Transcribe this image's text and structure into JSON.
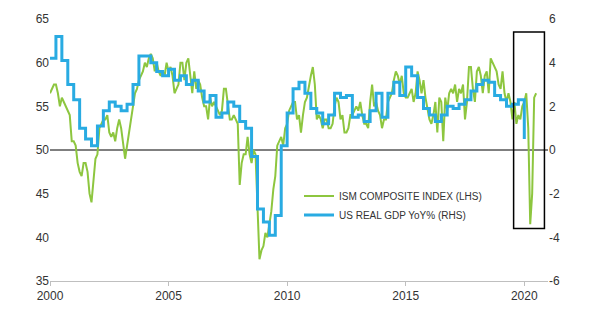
{
  "chart_data": {
    "type": "line",
    "xlim": [
      2000,
      2021
    ],
    "xticks": [
      2000,
      2005,
      2010,
      2015,
      2020
    ],
    "ylim": [
      35,
      65
    ],
    "yticks": [
      35,
      40,
      45,
      50,
      55,
      60,
      65
    ],
    "y2lim": [
      -6,
      6
    ],
    "y2ticks": [
      -6,
      -4,
      -2,
      0,
      2,
      4,
      6
    ],
    "grid": false,
    "legend": "lower center",
    "reference_line": 50,
    "highlight": {
      "x": [
        2019.55,
        2020.85
      ],
      "y": [
        41,
        63.5
      ]
    },
    "series": [
      {
        "name": "ISM COMPOSITE INDEX (LHS)",
        "color": "#8dc63f",
        "axis": "y",
        "x": [
          2000,
          2000.083,
          2000.167,
          2000.25,
          2000.333,
          2000.417,
          2000.5,
          2000.583,
          2000.667,
          2000.75,
          2000.833,
          2000.917,
          2001,
          2001.083,
          2001.167,
          2001.25,
          2001.333,
          2001.417,
          2001.5,
          2001.583,
          2001.667,
          2001.75,
          2001.833,
          2001.917,
          2002,
          2002.083,
          2002.167,
          2002.25,
          2002.333,
          2002.417,
          2002.5,
          2002.583,
          2002.667,
          2002.75,
          2002.833,
          2002.917,
          2003,
          2003.083,
          2003.167,
          2003.25,
          2003.333,
          2003.417,
          2003.5,
          2003.583,
          2003.667,
          2003.75,
          2003.833,
          2003.917,
          2004,
          2004.083,
          2004.167,
          2004.25,
          2004.333,
          2004.417,
          2004.5,
          2004.583,
          2004.667,
          2004.75,
          2004.833,
          2004.917,
          2005,
          2005.083,
          2005.167,
          2005.25,
          2005.333,
          2005.417,
          2005.5,
          2005.583,
          2005.667,
          2005.75,
          2005.833,
          2005.917,
          2006,
          2006.083,
          2006.167,
          2006.25,
          2006.333,
          2006.417,
          2006.5,
          2006.583,
          2006.667,
          2006.75,
          2006.833,
          2006.917,
          2007,
          2007.083,
          2007.167,
          2007.25,
          2007.333,
          2007.417,
          2007.5,
          2007.583,
          2007.667,
          2007.75,
          2007.833,
          2007.917,
          2008,
          2008.083,
          2008.167,
          2008.25,
          2008.333,
          2008.417,
          2008.5,
          2008.583,
          2008.667,
          2008.75,
          2008.833,
          2008.917,
          2009,
          2009.083,
          2009.167,
          2009.25,
          2009.333,
          2009.417,
          2009.5,
          2009.583,
          2009.667,
          2009.75,
          2009.833,
          2009.917,
          2010,
          2010.083,
          2010.167,
          2010.25,
          2010.333,
          2010.417,
          2010.5,
          2010.583,
          2010.667,
          2010.75,
          2010.833,
          2010.917,
          2011,
          2011.083,
          2011.167,
          2011.25,
          2011.333,
          2011.417,
          2011.5,
          2011.583,
          2011.667,
          2011.75,
          2011.833,
          2011.917,
          2012,
          2012.083,
          2012.167,
          2012.25,
          2012.333,
          2012.417,
          2012.5,
          2012.583,
          2012.667,
          2012.75,
          2012.833,
          2012.917,
          2013,
          2013.083,
          2013.167,
          2013.25,
          2013.333,
          2013.417,
          2013.5,
          2013.583,
          2013.667,
          2013.75,
          2013.833,
          2013.917,
          2014,
          2014.083,
          2014.167,
          2014.25,
          2014.333,
          2014.417,
          2014.5,
          2014.583,
          2014.667,
          2014.75,
          2014.833,
          2014.917,
          2015,
          2015.083,
          2015.167,
          2015.25,
          2015.333,
          2015.417,
          2015.5,
          2015.583,
          2015.667,
          2015.75,
          2015.833,
          2015.917,
          2016,
          2016.083,
          2016.167,
          2016.25,
          2016.333,
          2016.417,
          2016.5,
          2016.583,
          2016.667,
          2016.75,
          2016.833,
          2016.917,
          2017,
          2017.083,
          2017.167,
          2017.25,
          2017.333,
          2017.417,
          2017.5,
          2017.583,
          2017.667,
          2017.75,
          2017.833,
          2017.917,
          2018,
          2018.083,
          2018.167,
          2018.25,
          2018.333,
          2018.417,
          2018.5,
          2018.583,
          2018.667,
          2018.75,
          2018.833,
          2018.917,
          2019,
          2019.083,
          2019.167,
          2019.25,
          2019.333,
          2019.417,
          2019.5,
          2019.583,
          2019.667,
          2019.75,
          2019.833,
          2019.917,
          2020,
          2020.083,
          2020.167,
          2020.25,
          2020.333,
          2020.417,
          2020.5
        ],
        "values": [
          56.5,
          57,
          57.5,
          57.5,
          56.5,
          55,
          56,
          55.5,
          55,
          54.5,
          54,
          51,
          51,
          50.5,
          48.5,
          47.5,
          47,
          48.5,
          48.5,
          47.5,
          45,
          44,
          46.5,
          49,
          49.5,
          52.5,
          53,
          53.5,
          53.5,
          54,
          52,
          51.5,
          52,
          51,
          52.5,
          53.5,
          52.5,
          51,
          49,
          50.5,
          52,
          54,
          55.5,
          56.5,
          57,
          58,
          58.5,
          59,
          60,
          59.5,
          60.5,
          61,
          60.5,
          59,
          60,
          59,
          58.5,
          59,
          58.5,
          60,
          59,
          59.5,
          58.5,
          56.5,
          57,
          57.5,
          60,
          60,
          58,
          60,
          60.5,
          58.5,
          56.5,
          59,
          57,
          58,
          57.5,
          56,
          55,
          55,
          53.5,
          56,
          55,
          55.5,
          55,
          54.5,
          54,
          54.5,
          57,
          57,
          55,
          53.5,
          53.5,
          54,
          53.5,
          53,
          46,
          48.5,
          49.5,
          49.5,
          51.5,
          49.5,
          48.5,
          50,
          49.5,
          44,
          37.5,
          38.5,
          39,
          40.5,
          40,
          41.5,
          43,
          45.5,
          47,
          50.5,
          51,
          51.5,
          50.5,
          52.5,
          53,
          54.5,
          55,
          55.5,
          55.5,
          53.5,
          54,
          52,
          54,
          55.5,
          56,
          57.5,
          58.5,
          59.5,
          57.5,
          53.5,
          54,
          53.5,
          52.5,
          53.5,
          53.5,
          52.5,
          52.5,
          53,
          55,
          56,
          55.5,
          53.5,
          54,
          52,
          52,
          52.5,
          54,
          54,
          54.5,
          55,
          54.5,
          55.5,
          54,
          53,
          53,
          52.5,
          55.5,
          57.5,
          55,
          55.5,
          54.5,
          54,
          52.5,
          53.5,
          53.5,
          55.5,
          56,
          56.5,
          58,
          59,
          58.5,
          57.5,
          58.5,
          56.5,
          56,
          56,
          56.5,
          57,
          55.5,
          56.5,
          59,
          58,
          56.5,
          58,
          56,
          54.5,
          53.5,
          53,
          54,
          55.5,
          52,
          56,
          55.5,
          51,
          56,
          54.5,
          56.5,
          57,
          56.5,
          57.5,
          55.5,
          57,
          56.5,
          57.5,
          53.5,
          55.5,
          59.5,
          59.5,
          57,
          55.5,
          59,
          59.5,
          58.5,
          56.5,
          58.5,
          59,
          56.5,
          60.5,
          60,
          59.5,
          59,
          57.5,
          57,
          59,
          56.5,
          55.5,
          56.5,
          55.5,
          53.5,
          55.5,
          53,
          54,
          53.5,
          55,
          55.5,
          56.5,
          52.5,
          41.5,
          45,
          56,
          56.5
        ]
      },
      {
        "name": "US REAL GDP YoY% (RHS)",
        "color": "#29abe2",
        "axis": "y2",
        "line_style": "step",
        "x": [
          2000,
          2000.25,
          2000.5,
          2000.75,
          2001,
          2001.25,
          2001.5,
          2001.75,
          2002,
          2002.25,
          2002.5,
          2002.75,
          2003,
          2003.25,
          2003.5,
          2003.75,
          2004,
          2004.25,
          2004.5,
          2004.75,
          2005,
          2005.25,
          2005.5,
          2005.75,
          2006,
          2006.25,
          2006.5,
          2006.75,
          2007,
          2007.25,
          2007.5,
          2007.75,
          2008,
          2008.25,
          2008.5,
          2008.75,
          2009,
          2009.25,
          2009.5,
          2009.75,
          2010,
          2010.25,
          2010.5,
          2010.75,
          2011,
          2011.25,
          2011.5,
          2011.75,
          2012,
          2012.25,
          2012.5,
          2012.75,
          2013,
          2013.25,
          2013.5,
          2013.75,
          2014,
          2014.25,
          2014.5,
          2014.75,
          2015,
          2015.25,
          2015.5,
          2015.75,
          2016,
          2016.25,
          2016.5,
          2016.75,
          2017,
          2017.25,
          2017.5,
          2017.75,
          2018,
          2018.25,
          2018.5,
          2018.75,
          2019,
          2019.25,
          2019.5,
          2019.75,
          2020
        ],
        "values": [
          4.2,
          5.2,
          4.1,
          3.0,
          2.3,
          1.0,
          0.5,
          0.2,
          1.1,
          1.8,
          2.2,
          2.0,
          1.8,
          2.1,
          3.0,
          4.3,
          4.3,
          4.0,
          3.6,
          3.4,
          3.7,
          3.2,
          3.4,
          3.0,
          3.2,
          2.7,
          2.2,
          2.5,
          1.5,
          1.7,
          2.2,
          2.0,
          1.3,
          1.0,
          -0.3,
          -2.7,
          -3.3,
          -3.9,
          -3.0,
          0.2,
          1.7,
          2.8,
          3.1,
          2.6,
          1.9,
          1.7,
          1.2,
          1.6,
          2.6,
          2.4,
          2.5,
          1.5,
          1.6,
          1.3,
          1.8,
          2.6,
          1.5,
          2.6,
          3.1,
          2.5,
          3.8,
          3.4,
          2.4,
          1.9,
          1.6,
          1.3,
          1.6,
          2.0,
          1.9,
          2.1,
          2.3,
          2.7,
          3.0,
          3.2,
          3.1,
          2.5,
          2.3,
          2.0,
          2.1,
          2.3,
          0.5
        ]
      }
    ]
  }
}
